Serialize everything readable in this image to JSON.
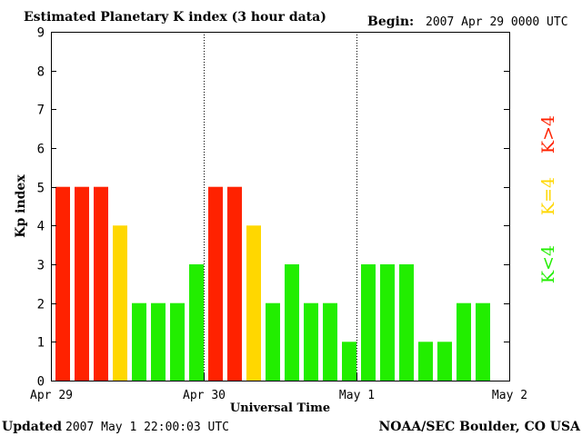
{
  "header": {
    "title": "Estimated Planetary K index (3 hour data)",
    "begin_label": "Begin:",
    "begin_value": "2007 Apr 29 0000 UTC"
  },
  "footer": {
    "updated_label": "Updated",
    "updated_value": "2007 May  1 22:00:03 UTC",
    "credit": "NOAA/SEC Boulder, CO USA"
  },
  "legend": {
    "items": [
      {
        "label": "K>4",
        "color": "#ff2200"
      },
      {
        "label": "K=4",
        "color": "#ffd700"
      },
      {
        "label": "K<4",
        "color": "#22ee00"
      }
    ]
  },
  "chart_data": {
    "type": "bar",
    "title": "Estimated Planetary K index (3 hour data)",
    "xlabel": "Universal Time",
    "ylabel": "Kp index",
    "ylim": [
      0,
      9
    ],
    "yticks": [
      0,
      1,
      2,
      3,
      4,
      5,
      6,
      7,
      8,
      9
    ],
    "xlim_periods": [
      0,
      24
    ],
    "xticks": [
      {
        "period": 0,
        "label": "Apr 29"
      },
      {
        "period": 8,
        "label": "Apr 30"
      },
      {
        "period": 16,
        "label": "May 1"
      },
      {
        "period": 24,
        "label": "May 2"
      }
    ],
    "day_dividers": [
      8,
      16
    ],
    "period_hours": 3,
    "values": [
      5,
      5,
      5,
      4,
      2,
      2,
      2,
      3,
      5,
      5,
      4,
      2,
      3,
      2,
      2,
      1,
      3,
      3,
      3,
      1,
      1,
      2,
      2
    ],
    "colors": {
      "high": "#ff2200",
      "equal": "#ffd700",
      "low": "#22ee00"
    }
  }
}
